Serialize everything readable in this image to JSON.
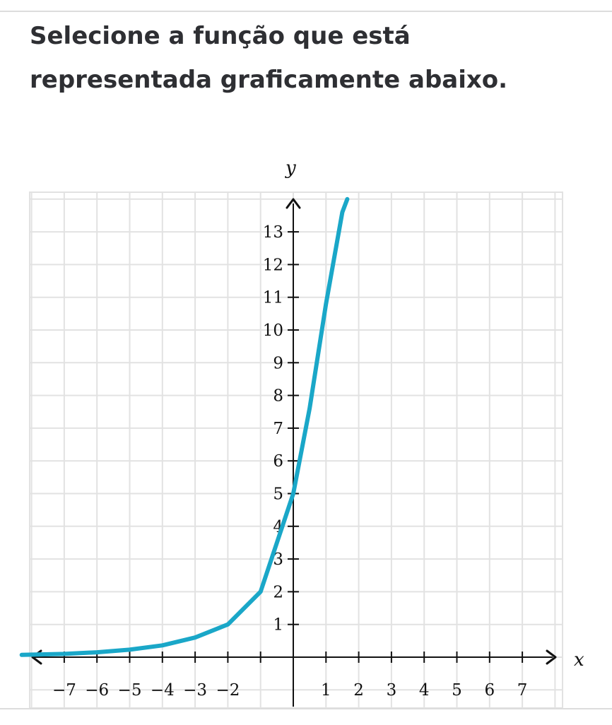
{
  "question": {
    "text": "Selecione a função que está representada graficamente abaixo."
  },
  "colors": {
    "curve": "#1aa7c8",
    "grid": "#e2e2e2",
    "axis": "#111111",
    "text": "#2e2f33"
  },
  "chart_data": {
    "type": "line",
    "title": "",
    "xlabel": "x",
    "ylabel": "y",
    "xlim": [
      -8.5,
      8.5
    ],
    "ylim": [
      -1,
      14
    ],
    "grid": true,
    "x_ticks": [
      -7,
      -6,
      -5,
      -4,
      -3,
      -2,
      -1,
      1,
      2,
      3,
      4,
      5,
      6,
      7
    ],
    "x_tick_labels": [
      "−7",
      "−6",
      "−5",
      "−4",
      "−3",
      "−2",
      "1",
      "2",
      "3",
      "4",
      "5",
      "6",
      "7"
    ],
    "x_tick_label_values": [
      -7,
      -6,
      -5,
      -4,
      -3,
      -2,
      1,
      2,
      3,
      4,
      5,
      6,
      7
    ],
    "y_ticks": [
      1,
      2,
      3,
      4,
      5,
      6,
      7,
      8,
      9,
      10,
      11,
      12,
      13
    ],
    "y_tick_labels": [
      "1",
      "2",
      "3",
      "4",
      "5",
      "6",
      "7",
      "8",
      "9",
      "10",
      "11",
      "12",
      "13"
    ],
    "series": [
      {
        "x": [
          -8.3,
          -7,
          -6,
          -5,
          -4,
          -3,
          -2,
          -1,
          0,
          0.5,
          1,
          1.5,
          1.65
        ],
        "y": [
          0.07,
          0.1,
          0.15,
          0.23,
          0.36,
          0.6,
          1.0,
          2.0,
          5.0,
          7.6,
          10.8,
          13.6,
          14.0
        ]
      }
    ]
  }
}
